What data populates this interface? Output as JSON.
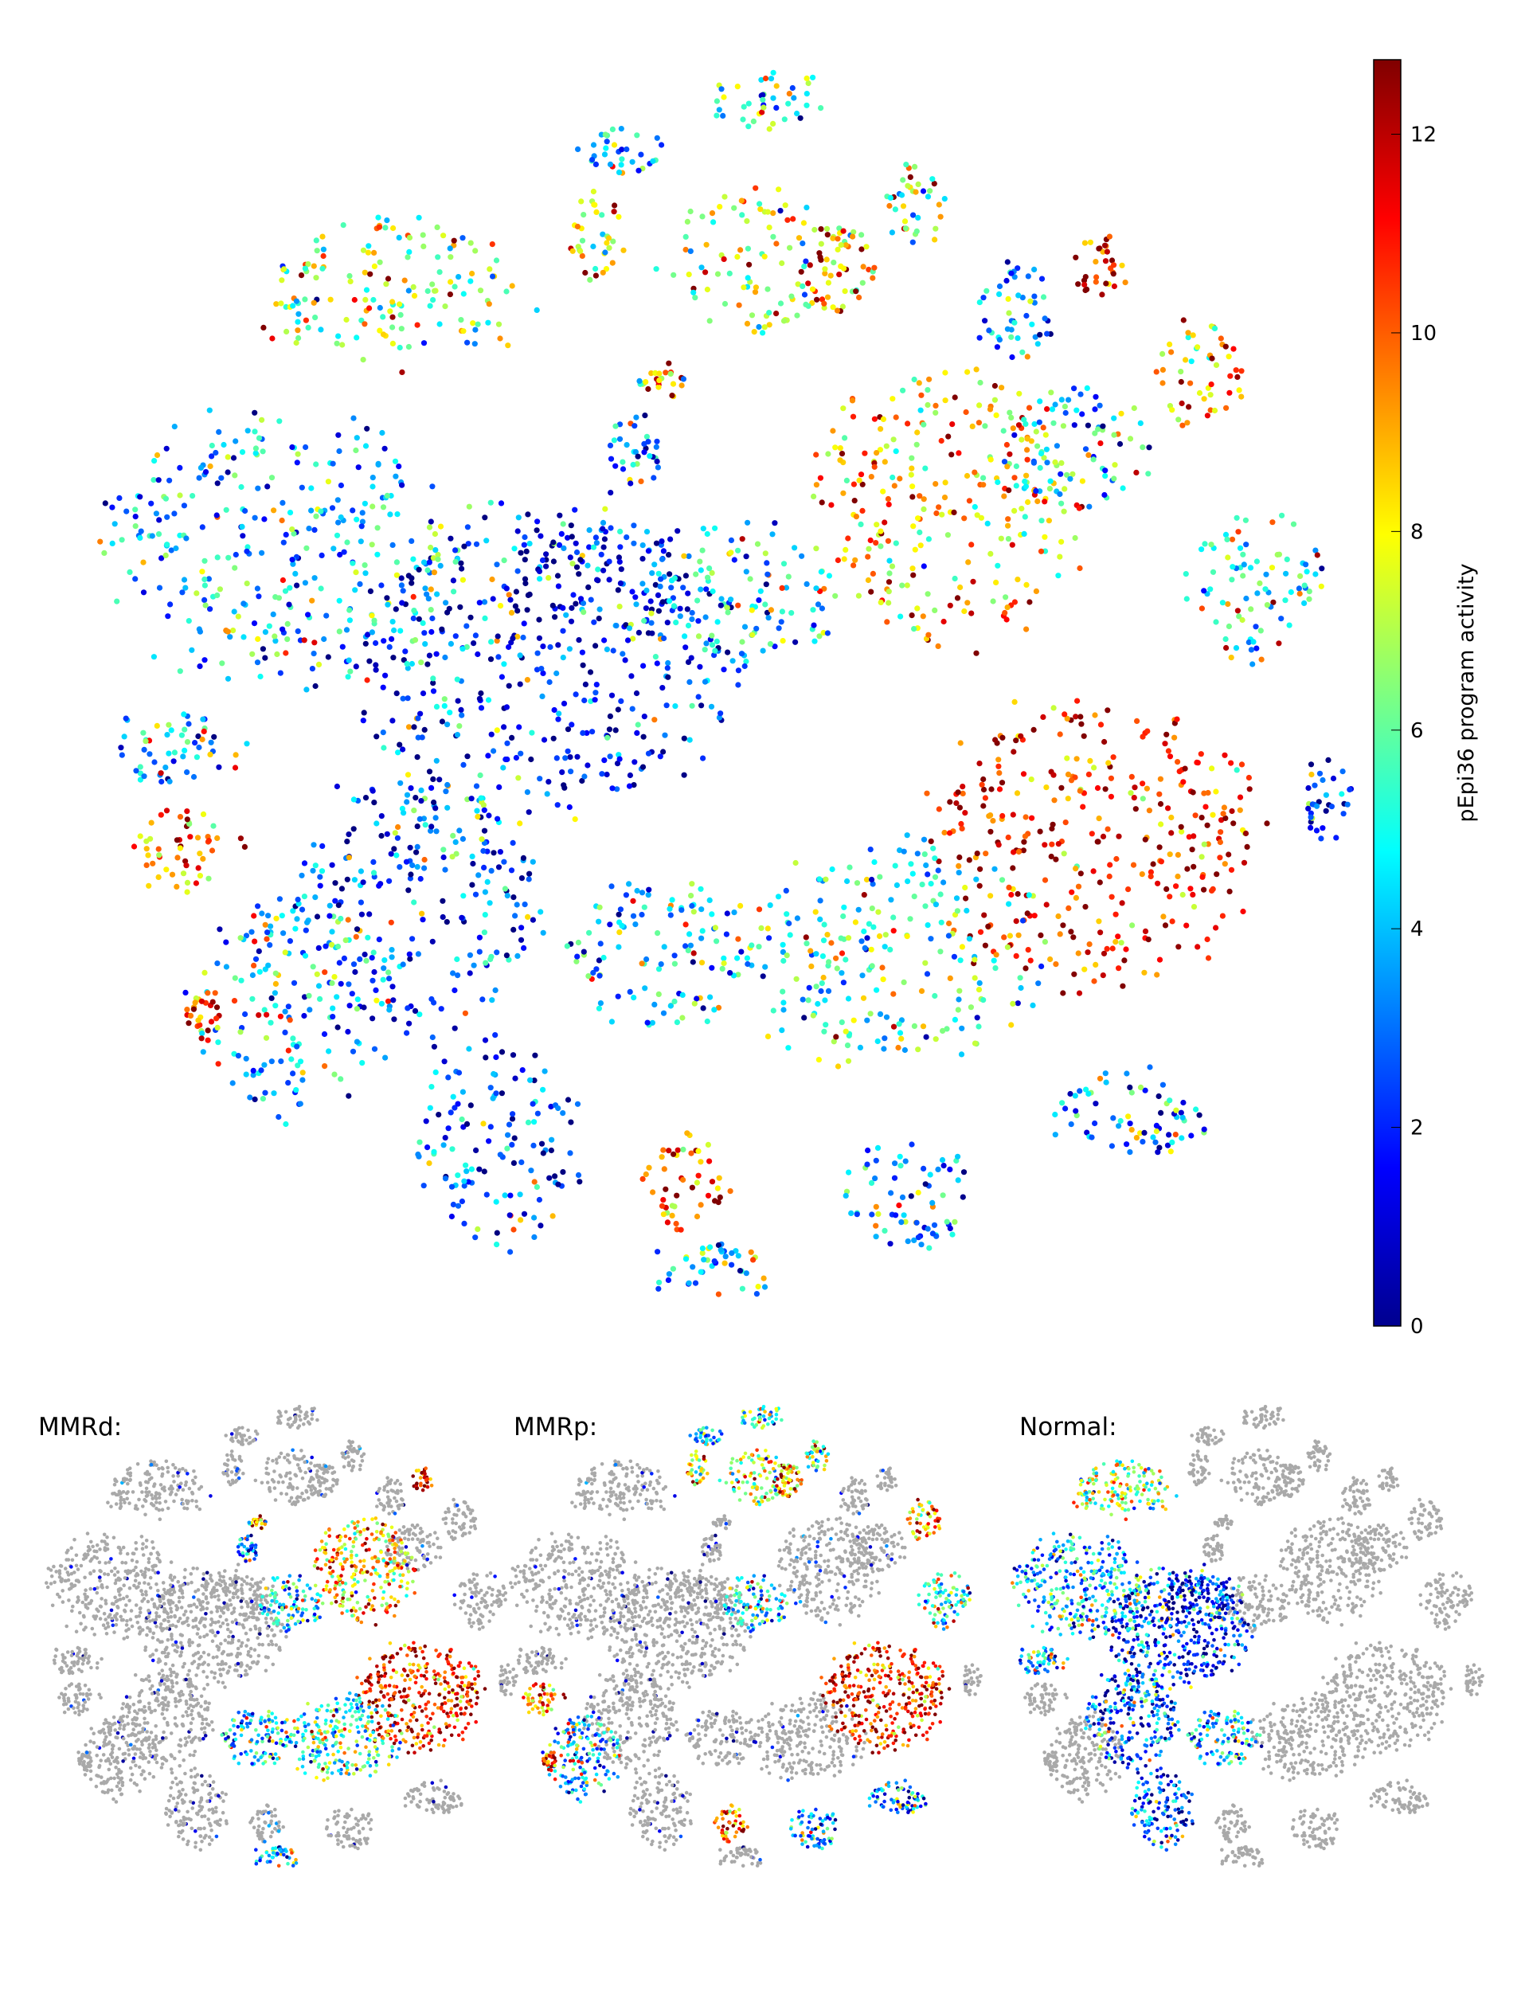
{
  "chart_data": {
    "type": "scatter",
    "description_axis": "t-SNE embedding (arbitrary units, axes hidden)",
    "xlim": [
      -56,
      56
    ],
    "ylim": [
      -54,
      54
    ],
    "grid": false,
    "colorbar": {
      "label": "pEpi36 program activity",
      "colormap": "jet",
      "range": [
        0,
        12.75
      ],
      "ticks": [
        0,
        2,
        4,
        6,
        8,
        10,
        12
      ],
      "tick_labels": [
        "0",
        "2",
        "4",
        "6",
        "8",
        "10",
        "12"
      ],
      "placement": "right"
    },
    "missing_color": "#a9a9a9",
    "clusters": [
      {
        "x": 6.3,
        "y": 49.0,
        "sx": 4.7,
        "sy": 2.6,
        "activity": 5,
        "group": "p"
      },
      {
        "x": -5.2,
        "y": 44.8,
        "sx": 3.6,
        "sy": 2.1,
        "activity": 4,
        "group": "p"
      },
      {
        "x": -24.0,
        "y": 32.8,
        "sx": 11.5,
        "sy": 6.3,
        "activity": 6.5,
        "group": "n"
      },
      {
        "x": -7.3,
        "y": 37.5,
        "sx": 2.6,
        "sy": 3.6,
        "activity": 7.5,
        "group": "p"
      },
      {
        "x": 6.3,
        "y": 35.4,
        "sx": 8.3,
        "sy": 5.7,
        "activity": 7,
        "group": "p"
      },
      {
        "x": 12.5,
        "y": 34.4,
        "sx": 3.1,
        "sy": 3.6,
        "activity": 10,
        "group": "p"
      },
      {
        "x": 18.8,
        "y": 40.1,
        "sx": 2.6,
        "sy": 3.6,
        "activity": 6,
        "group": "p"
      },
      {
        "x": 27.1,
        "y": 31.3,
        "sx": 3.6,
        "sy": 4.2,
        "activity": 3.5,
        "group": "x"
      },
      {
        "x": 33.9,
        "y": 34.9,
        "sx": 2.1,
        "sy": 3.1,
        "activity": 11,
        "group": "d"
      },
      {
        "x": 42.2,
        "y": 26.0,
        "sx": 3.6,
        "sy": 4.7,
        "activity": 9,
        "group": "p"
      },
      {
        "x": -2.1,
        "y": 25.5,
        "sx": 2.1,
        "sy": 1.6,
        "activity": 9,
        "group": "d"
      },
      {
        "x": -4.2,
        "y": 20.3,
        "sx": 2.6,
        "sy": 3.1,
        "activity": 4,
        "group": "d"
      },
      {
        "x": -33.3,
        "y": 11.9,
        "sx": 14.6,
        "sy": 11.5,
        "activity": 3.8,
        "group": "n"
      },
      {
        "x": -11.5,
        "y": 2.6,
        "sx": 15.6,
        "sy": 13.5,
        "activity": 1.8,
        "group": "n"
      },
      {
        "x": -7.3,
        "y": 8.9,
        "sx": 7.3,
        "sy": 5.2,
        "activity": 1.2,
        "group": "n"
      },
      {
        "x": 20.8,
        "y": 15.1,
        "sx": 11.5,
        "sy": 11.5,
        "activity": 8.5,
        "group": "d"
      },
      {
        "x": 32.3,
        "y": 20.3,
        "sx": 6.3,
        "sy": 5.7,
        "activity": 4,
        "group": "x"
      },
      {
        "x": 46.9,
        "y": 8.9,
        "sx": 5.7,
        "sy": 6.3,
        "activity": 5.5,
        "group": "p"
      },
      {
        "x": 33.3,
        "y": -12.0,
        "sx": 13.5,
        "sy": 12.5,
        "activity": 10.5,
        "group": "dp"
      },
      {
        "x": -42.7,
        "y": -4.7,
        "sx": 6.3,
        "sy": 3.1,
        "activity": 4,
        "group": "n"
      },
      {
        "x": -41.1,
        "y": -13.0,
        "sx": 4.7,
        "sy": 3.6,
        "activity": 9,
        "group": "p"
      },
      {
        "x": -32.3,
        "y": -25.5,
        "sx": 8.3,
        "sy": 9.4,
        "activity": 4,
        "group": "p"
      },
      {
        "x": -39.6,
        "y": -26.6,
        "sx": 1.6,
        "sy": 2.1,
        "activity": 11,
        "group": "p"
      },
      {
        "x": -21.9,
        "y": -17.2,
        "sx": 10.4,
        "sy": 11.5,
        "activity": 2.5,
        "group": "n"
      },
      {
        "x": -15.6,
        "y": -37.0,
        "sx": 7.3,
        "sy": 8.3,
        "activity": 2.5,
        "group": "n"
      },
      {
        "x": 0.0,
        "y": -40.1,
        "sx": 3.6,
        "sy": 4.2,
        "activity": 10,
        "group": "p"
      },
      {
        "x": 17.7,
        "y": -41.1,
        "sx": 5.7,
        "sy": 4.7,
        "activity": 3.5,
        "group": "p"
      },
      {
        "x": 2.1,
        "y": -47.4,
        "sx": 5.2,
        "sy": 2.6,
        "activity": 4,
        "group": "d"
      },
      {
        "x": 36.5,
        "y": -34.4,
        "sx": 7.3,
        "sy": 3.6,
        "activity": 3,
        "group": "p"
      },
      {
        "x": 52.6,
        "y": -8.9,
        "sx": 2.1,
        "sy": 3.6,
        "activity": 2,
        "group": "x"
      },
      {
        "x": 16.7,
        "y": -21.4,
        "sx": 12.5,
        "sy": 9.4,
        "activity": 5.5,
        "group": "d"
      },
      {
        "x": -2.1,
        "y": -21.4,
        "sx": 8.3,
        "sy": 6.3,
        "activity": 4.5,
        "group": "dn"
      },
      {
        "x": 5.2,
        "y": 7.8,
        "sx": 7.3,
        "sy": 6.3,
        "activity": 4.5,
        "group": "dp"
      }
    ],
    "panels": [
      {
        "title": "MMRd:",
        "group": "d"
      },
      {
        "title": "MMRp:",
        "group": "p"
      },
      {
        "title": "Normal:",
        "group": "n"
      }
    ]
  }
}
